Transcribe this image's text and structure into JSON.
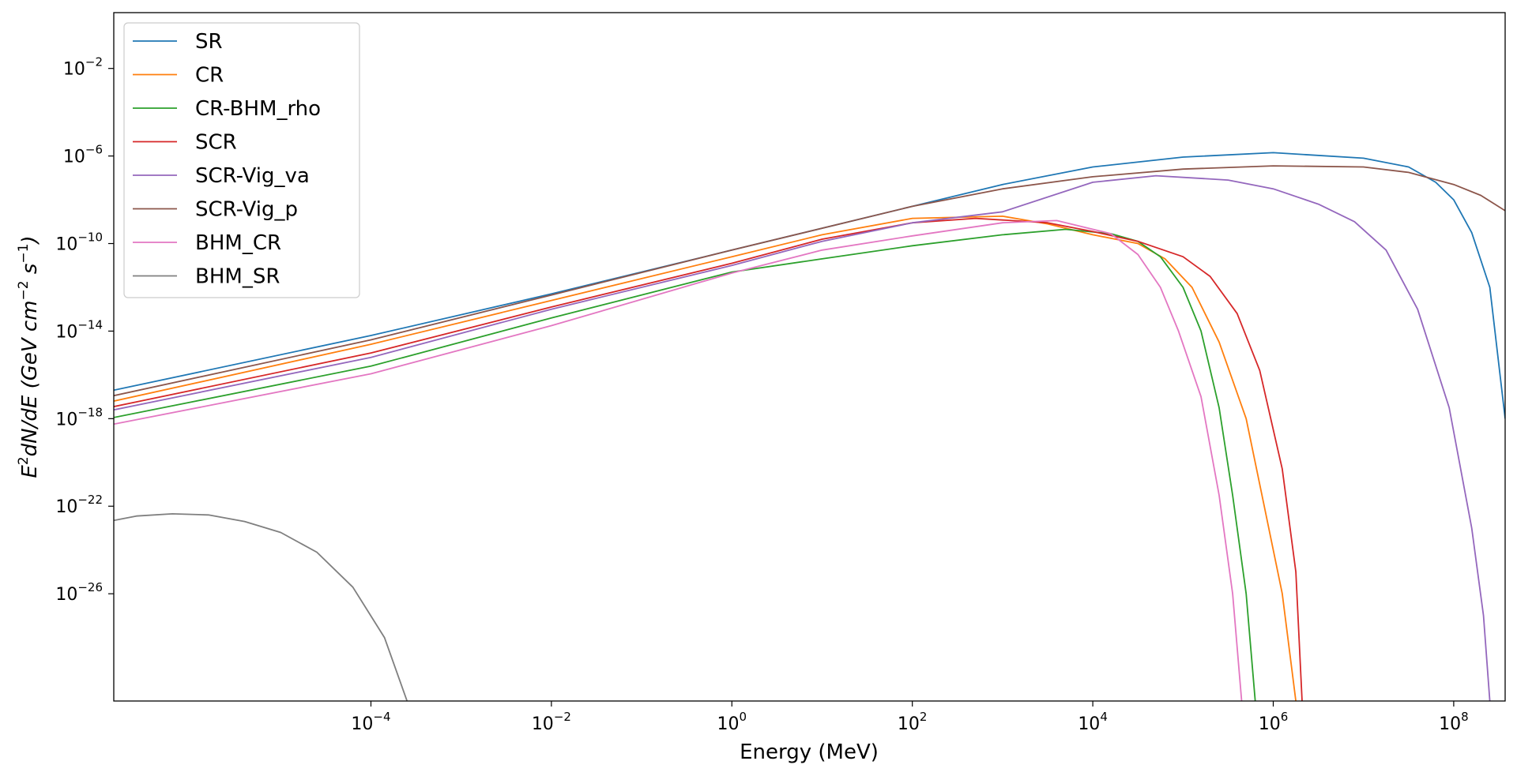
{
  "chart_data": {
    "type": "line",
    "title": "",
    "xlabel": "Energy (MeV)",
    "ylabel_parts": [
      "E",
      "2",
      "dN/dE (GeV cm",
      "−2",
      " s",
      "−1",
      ")"
    ],
    "xscale": "log",
    "yscale": "log",
    "xlim_exp": [
      -6.85,
      8.57
    ],
    "ylim_exp": [
      -30.9,
      0.55
    ],
    "x_ticks": [
      {
        "base": "10",
        "exp": "−4",
        "value": -4
      },
      {
        "base": "10",
        "exp": "−2",
        "value": -2
      },
      {
        "base": "10",
        "exp": "0",
        "value": 0
      },
      {
        "base": "10",
        "exp": "2",
        "value": 2
      },
      {
        "base": "10",
        "exp": "4",
        "value": 4
      },
      {
        "base": "10",
        "exp": "6",
        "value": 6
      },
      {
        "base": "10",
        "exp": "8",
        "value": 8
      }
    ],
    "y_ticks": [
      {
        "base": "10",
        "exp": "−2",
        "value": -2
      },
      {
        "base": "10",
        "exp": "−6",
        "value": -6
      },
      {
        "base": "10",
        "exp": "−10",
        "value": -10
      },
      {
        "base": "10",
        "exp": "−14",
        "value": -14
      },
      {
        "base": "10",
        "exp": "−18",
        "value": -18
      },
      {
        "base": "10",
        "exp": "−22",
        "value": -22
      },
      {
        "base": "10",
        "exp": "−26",
        "value": -26
      }
    ],
    "legend_position": "top-left",
    "series": [
      {
        "name": "SR",
        "color": "#1f77b4",
        "points": [
          [
            -6.85,
            -16.7
          ],
          [
            -4,
            -14.2
          ],
          [
            -2,
            -12.3
          ],
          [
            0,
            -10.3
          ],
          [
            2,
            -8.3
          ],
          [
            3,
            -7.3
          ],
          [
            4,
            -6.5
          ],
          [
            5,
            -6.05
          ],
          [
            6,
            -5.85
          ],
          [
            7,
            -6.1
          ],
          [
            7.5,
            -6.5
          ],
          [
            7.8,
            -7.2
          ],
          [
            8,
            -8.0
          ],
          [
            8.2,
            -9.5
          ],
          [
            8.4,
            -12.0
          ],
          [
            8.57,
            -18.0
          ]
        ]
      },
      {
        "name": "CR",
        "color": "#ff7f0e",
        "points": [
          [
            -6.85,
            -17.2
          ],
          [
            -4,
            -14.6
          ],
          [
            -2,
            -12.6
          ],
          [
            0,
            -10.6
          ],
          [
            1,
            -9.6
          ],
          [
            2,
            -8.85
          ],
          [
            3,
            -8.75
          ],
          [
            3.5,
            -9.1
          ],
          [
            4,
            -9.6
          ],
          [
            4.5,
            -10.0
          ],
          [
            4.8,
            -10.7
          ],
          [
            5.1,
            -12.0
          ],
          [
            5.4,
            -14.5
          ],
          [
            5.7,
            -18.0
          ],
          [
            5.9,
            -22.0
          ],
          [
            6.1,
            -26.0
          ],
          [
            6.25,
            -30.9
          ]
        ]
      },
      {
        "name": "CR-BHM_rho",
        "color": "#2ca02c",
        "points": [
          [
            -6.85,
            -17.95
          ],
          [
            -4,
            -15.6
          ],
          [
            -2,
            -13.4
          ],
          [
            0,
            -11.3
          ],
          [
            1,
            -10.7
          ],
          [
            2,
            -10.1
          ],
          [
            3,
            -9.6
          ],
          [
            3.7,
            -9.35
          ],
          [
            4.2,
            -9.55
          ],
          [
            4.5,
            -9.9
          ],
          [
            4.75,
            -10.6
          ],
          [
            5.0,
            -12.0
          ],
          [
            5.2,
            -14.0
          ],
          [
            5.4,
            -17.5
          ],
          [
            5.55,
            -21.5
          ],
          [
            5.7,
            -26.0
          ],
          [
            5.8,
            -30.9
          ]
        ]
      },
      {
        "name": "SCR",
        "color": "#d62728",
        "points": [
          [
            -6.85,
            -17.45
          ],
          [
            -4,
            -15.0
          ],
          [
            -2,
            -12.9
          ],
          [
            0,
            -10.9
          ],
          [
            1,
            -9.8
          ],
          [
            2,
            -9.05
          ],
          [
            2.7,
            -8.85
          ],
          [
            3.5,
            -9.05
          ],
          [
            4,
            -9.45
          ],
          [
            4.5,
            -9.9
          ],
          [
            5.0,
            -10.6
          ],
          [
            5.3,
            -11.5
          ],
          [
            5.6,
            -13.2
          ],
          [
            5.85,
            -15.8
          ],
          [
            6.1,
            -20.3
          ],
          [
            6.25,
            -25.0
          ],
          [
            6.32,
            -30.9
          ]
        ]
      },
      {
        "name": "SCR-Vig_va",
        "color": "#9467bd",
        "points": [
          [
            -6.85,
            -17.6
          ],
          [
            -4,
            -15.2
          ],
          [
            -2,
            -13.0
          ],
          [
            0,
            -11.0
          ],
          [
            1,
            -9.9
          ],
          [
            2,
            -9.05
          ],
          [
            3,
            -8.55
          ],
          [
            4,
            -7.2
          ],
          [
            4.7,
            -6.9
          ],
          [
            5.5,
            -7.1
          ],
          [
            6,
            -7.5
          ],
          [
            6.5,
            -8.2
          ],
          [
            6.9,
            -9.0
          ],
          [
            7.25,
            -10.3
          ],
          [
            7.6,
            -13.0
          ],
          [
            7.95,
            -17.5
          ],
          [
            8.2,
            -23.0
          ],
          [
            8.33,
            -27.0
          ],
          [
            8.4,
            -30.9
          ]
        ]
      },
      {
        "name": "SCR-Vig_p",
        "color": "#8c564b",
        "points": [
          [
            -6.85,
            -16.95
          ],
          [
            -4,
            -14.4
          ],
          [
            -2,
            -12.35
          ],
          [
            0,
            -10.3
          ],
          [
            1,
            -9.3
          ],
          [
            2,
            -8.3
          ],
          [
            3,
            -7.5
          ],
          [
            4,
            -6.95
          ],
          [
            5,
            -6.6
          ],
          [
            6,
            -6.45
          ],
          [
            7,
            -6.5
          ],
          [
            7.5,
            -6.75
          ],
          [
            8,
            -7.3
          ],
          [
            8.3,
            -7.8
          ],
          [
            8.57,
            -8.5
          ]
        ]
      },
      {
        "name": "BHM_CR",
        "color": "#e377c2",
        "points": [
          [
            -6.85,
            -18.25
          ],
          [
            -4,
            -15.95
          ],
          [
            -2,
            -13.75
          ],
          [
            0,
            -11.35
          ],
          [
            1,
            -10.3
          ],
          [
            2,
            -9.65
          ],
          [
            3,
            -9.05
          ],
          [
            3.6,
            -8.95
          ],
          [
            4.2,
            -9.55
          ],
          [
            4.5,
            -10.5
          ],
          [
            4.75,
            -12.0
          ],
          [
            4.95,
            -14.0
          ],
          [
            5.2,
            -17.0
          ],
          [
            5.4,
            -21.5
          ],
          [
            5.55,
            -26.0
          ],
          [
            5.65,
            -30.9
          ]
        ]
      },
      {
        "name": "BHM_SR",
        "color": "#7f7f7f",
        "points": [
          [
            -6.85,
            -22.65
          ],
          [
            -6.6,
            -22.45
          ],
          [
            -6.2,
            -22.35
          ],
          [
            -5.8,
            -22.4
          ],
          [
            -5.4,
            -22.7
          ],
          [
            -5.0,
            -23.2
          ],
          [
            -4.6,
            -24.1
          ],
          [
            -4.2,
            -25.7
          ],
          [
            -3.85,
            -28.0
          ],
          [
            -3.6,
            -30.9
          ]
        ]
      }
    ]
  }
}
